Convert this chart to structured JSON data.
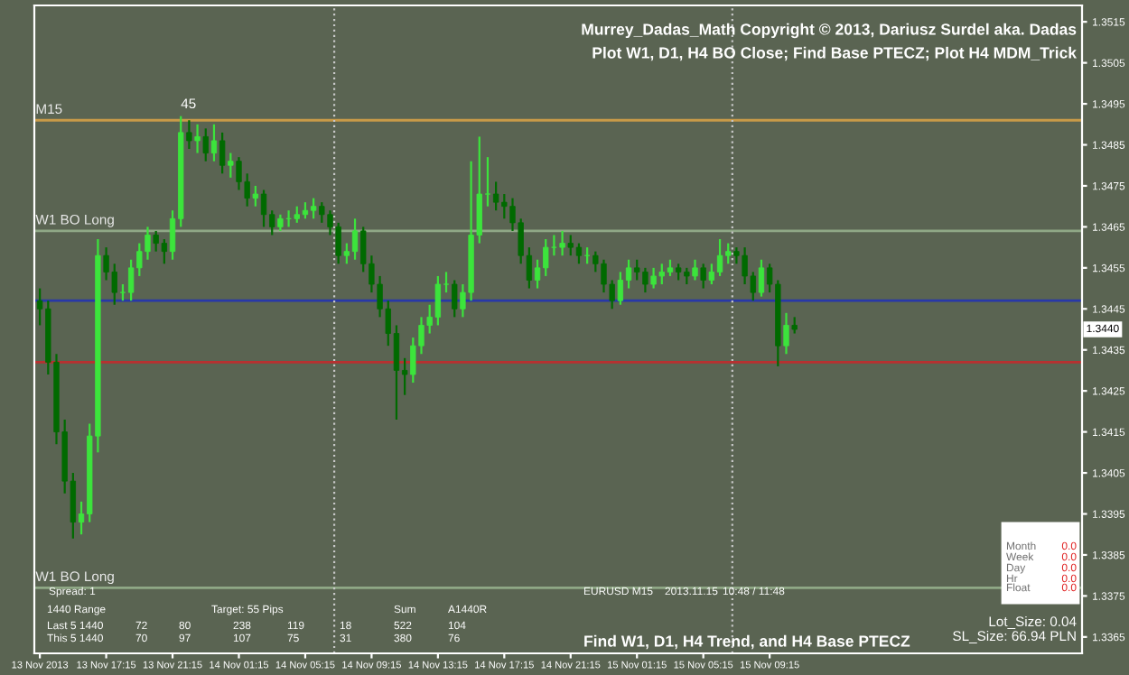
{
  "chart_data": {
    "type": "candlestick",
    "title": "Murrey_Dadas_Math Copyright © 2013, Dariusz Surdel aka. Dadas",
    "subtitle": "Plot W1, D1, H4 BO Close; Find Base PTECZ; Plot H4 MDM_Trick",
    "x": [
      "2013-11-13T13:15",
      "2013-11-13T13:45",
      "2013-11-13T14:15",
      "2013-11-13T14:45",
      "2013-11-13T15:15",
      "2013-11-13T15:45",
      "2013-11-13T16:15",
      "2013-11-13T16:45",
      "2013-11-13T17:15",
      "2013-11-13T17:45",
      "2013-11-13T18:15",
      "2013-11-13T18:45",
      "2013-11-13T19:15",
      "2013-11-13T19:45",
      "2013-11-13T20:15",
      "2013-11-13T20:45",
      "2013-11-13T21:15",
      "2013-11-13T21:45",
      "2013-11-13T22:15",
      "2013-11-13T22:45",
      "2013-11-13T23:15",
      "2013-11-13T23:45",
      "2013-11-14T00:15",
      "2013-11-14T00:45",
      "2013-11-14T01:15",
      "2013-11-14T01:45",
      "2013-11-14T02:15",
      "2013-11-14T02:45",
      "2013-11-14T03:15",
      "2013-11-14T03:45",
      "2013-11-14T04:15",
      "2013-11-14T04:45",
      "2013-11-14T05:15",
      "2013-11-14T05:45",
      "2013-11-14T06:15",
      "2013-11-14T06:45",
      "2013-11-14T07:15",
      "2013-11-14T07:45",
      "2013-11-14T08:15",
      "2013-11-14T08:45",
      "2013-11-14T09:15",
      "2013-11-14T09:45",
      "2013-11-14T10:15",
      "2013-11-14T10:45",
      "2013-11-14T11:15",
      "2013-11-14T11:45",
      "2013-11-14T12:15",
      "2013-11-14T12:45",
      "2013-11-14T13:15",
      "2013-11-14T13:45",
      "2013-11-14T14:15",
      "2013-11-14T14:45",
      "2013-11-14T15:15",
      "2013-11-14T15:45",
      "2013-11-14T16:15",
      "2013-11-14T16:45",
      "2013-11-14T17:15",
      "2013-11-14T17:45",
      "2013-11-14T18:15",
      "2013-11-14T18:45",
      "2013-11-14T19:15",
      "2013-11-14T19:45",
      "2013-11-14T20:15",
      "2013-11-14T20:45",
      "2013-11-14T21:15",
      "2013-11-14T21:45",
      "2013-11-14T22:15",
      "2013-11-14T22:45",
      "2013-11-14T23:15",
      "2013-11-14T23:45",
      "2013-11-15T00:15",
      "2013-11-15T00:45",
      "2013-11-15T01:15",
      "2013-11-15T01:45",
      "2013-11-15T02:15",
      "2013-11-15T02:45",
      "2013-11-15T03:15",
      "2013-11-15T03:45",
      "2013-11-15T04:15",
      "2013-11-15T04:45",
      "2013-11-15T05:15",
      "2013-11-15T05:45",
      "2013-11-15T06:15",
      "2013-11-15T06:45",
      "2013-11-15T07:15",
      "2013-11-15T07:45",
      "2013-11-15T08:15",
      "2013-11-15T08:45",
      "2013-11-15T09:15",
      "2013-11-15T09:45",
      "2013-11-15T10:15",
      "2013-11-15T10:45"
    ],
    "ohlc": [
      [
        1.3447,
        1.345,
        1.3441,
        1.3445
      ],
      [
        1.3445,
        1.3447,
        1.3429,
        1.3432
      ],
      [
        1.3432,
        1.3434,
        1.3412,
        1.3415
      ],
      [
        1.3415,
        1.3418,
        1.34,
        1.3403
      ],
      [
        1.3403,
        1.3405,
        1.3389,
        1.3393
      ],
      [
        1.3393,
        1.3398,
        1.339,
        1.3395
      ],
      [
        1.3395,
        1.3417,
        1.3393,
        1.3414
      ],
      [
        1.3414,
        1.3462,
        1.341,
        1.3458
      ],
      [
        1.3458,
        1.346,
        1.3452,
        1.3454
      ],
      [
        1.3454,
        1.3456,
        1.3446,
        1.3449
      ],
      [
        1.3449,
        1.3451,
        1.3447,
        1.3449
      ],
      [
        1.3449,
        1.3457,
        1.3447,
        1.3455
      ],
      [
        1.3455,
        1.3461,
        1.3453,
        1.3459
      ],
      [
        1.3459,
        1.3465,
        1.3457,
        1.3463
      ],
      [
        1.3463,
        1.3464,
        1.3459,
        1.3461
      ],
      [
        1.3461,
        1.3462,
        1.3456,
        1.3459
      ],
      [
        1.3459,
        1.3469,
        1.3457,
        1.3467
      ],
      [
        1.3467,
        1.3492,
        1.3465,
        1.3488
      ],
      [
        1.3488,
        1.3491,
        1.3484,
        1.3486
      ],
      [
        1.3486,
        1.349,
        1.3483,
        1.3487
      ],
      [
        1.3487,
        1.3489,
        1.3481,
        1.3483
      ],
      [
        1.3483,
        1.349,
        1.3481,
        1.3486
      ],
      [
        1.3486,
        1.3488,
        1.3478,
        1.348
      ],
      [
        1.348,
        1.3483,
        1.3477,
        1.3481
      ],
      [
        1.3481,
        1.3482,
        1.3474,
        1.3476
      ],
      [
        1.3476,
        1.3478,
        1.347,
        1.3472
      ],
      [
        1.3472,
        1.3475,
        1.347,
        1.3473
      ],
      [
        1.3473,
        1.3474,
        1.3465,
        1.3468
      ],
      [
        1.3468,
        1.3469,
        1.3463,
        1.3465
      ],
      [
        1.3465,
        1.3468,
        1.3464,
        1.3467
      ],
      [
        1.3467,
        1.3469,
        1.3465,
        1.3467
      ],
      [
        1.3467,
        1.347,
        1.3466,
        1.3468
      ],
      [
        1.3468,
        1.3471,
        1.3467,
        1.3469
      ],
      [
        1.3469,
        1.3472,
        1.3467,
        1.347
      ],
      [
        1.347,
        1.3471,
        1.3466,
        1.3468
      ],
      [
        1.3468,
        1.3469,
        1.3463,
        1.3465
      ],
      [
        1.3465,
        1.3466,
        1.3456,
        1.3458
      ],
      [
        1.3458,
        1.3461,
        1.3456,
        1.3459
      ],
      [
        1.3459,
        1.3467,
        1.3457,
        1.3464
      ],
      [
        1.3464,
        1.3465,
        1.3454,
        1.3456
      ],
      [
        1.3456,
        1.3458,
        1.3449,
        1.3451
      ],
      [
        1.3451,
        1.3453,
        1.3443,
        1.3445
      ],
      [
        1.3445,
        1.3447,
        1.3436,
        1.3439
      ],
      [
        1.3439,
        1.3441,
        1.3418,
        1.343
      ],
      [
        1.343,
        1.3433,
        1.3424,
        1.3429
      ],
      [
        1.3429,
        1.3438,
        1.3427,
        1.3436
      ],
      [
        1.3436,
        1.3443,
        1.3434,
        1.3441
      ],
      [
        1.3441,
        1.3446,
        1.3439,
        1.3443
      ],
      [
        1.3443,
        1.3453,
        1.3441,
        1.3451
      ],
      [
        1.3451,
        1.3454,
        1.3449,
        1.3451
      ],
      [
        1.3451,
        1.3452,
        1.3443,
        1.3445
      ],
      [
        1.3445,
        1.3451,
        1.3443,
        1.3449
      ],
      [
        1.3449,
        1.3481,
        1.3447,
        1.3463
      ],
      [
        1.3463,
        1.3487,
        1.3461,
        1.3473
      ],
      [
        1.3473,
        1.3482,
        1.347,
        1.3473
      ],
      [
        1.3473,
        1.3476,
        1.3469,
        1.3471
      ],
      [
        1.3471,
        1.3473,
        1.3467,
        1.347
      ],
      [
        1.347,
        1.3472,
        1.3464,
        1.3466
      ],
      [
        1.3466,
        1.3467,
        1.3456,
        1.3458
      ],
      [
        1.3458,
        1.346,
        1.345,
        1.3452
      ],
      [
        1.3452,
        1.3457,
        1.345,
        1.3455
      ],
      [
        1.3455,
        1.3462,
        1.3453,
        1.346
      ],
      [
        1.346,
        1.3463,
        1.3458,
        1.346
      ],
      [
        1.346,
        1.3464,
        1.3458,
        1.3461
      ],
      [
        1.3461,
        1.3463,
        1.3458,
        1.346
      ],
      [
        1.346,
        1.3461,
        1.3456,
        1.3458
      ],
      [
        1.3458,
        1.346,
        1.3456,
        1.3458
      ],
      [
        1.3458,
        1.3459,
        1.3454,
        1.3456
      ],
      [
        1.3456,
        1.3457,
        1.3449,
        1.3451
      ],
      [
        1.3451,
        1.3452,
        1.3445,
        1.3447
      ],
      [
        1.3447,
        1.3454,
        1.3446,
        1.3452
      ],
      [
        1.3452,
        1.3457,
        1.345,
        1.3455
      ],
      [
        1.3455,
        1.3457,
        1.3452,
        1.3454
      ],
      [
        1.3454,
        1.3455,
        1.3449,
        1.3451
      ],
      [
        1.3451,
        1.3455,
        1.345,
        1.3453
      ],
      [
        1.3453,
        1.3456,
        1.3451,
        1.3454
      ],
      [
        1.3454,
        1.3457,
        1.3453,
        1.3455
      ],
      [
        1.3455,
        1.3456,
        1.3452,
        1.3454
      ],
      [
        1.3454,
        1.3455,
        1.3451,
        1.3453
      ],
      [
        1.3453,
        1.3457,
        1.3452,
        1.3455
      ],
      [
        1.3455,
        1.3456,
        1.345,
        1.3452
      ],
      [
        1.3452,
        1.3456,
        1.3451,
        1.3454
      ],
      [
        1.3454,
        1.3462,
        1.3453,
        1.3458
      ],
      [
        1.3458,
        1.3461,
        1.3456,
        1.3459
      ],
      [
        1.3459,
        1.346,
        1.3456,
        1.3458
      ],
      [
        1.3458,
        1.346,
        1.3451,
        1.3453
      ],
      [
        1.3453,
        1.3454,
        1.3447,
        1.3449
      ],
      [
        1.3449,
        1.3457,
        1.3448,
        1.3455
      ],
      [
        1.3455,
        1.3456,
        1.3449,
        1.3451
      ],
      [
        1.3451,
        1.3452,
        1.3431,
        1.3436
      ],
      [
        1.3436,
        1.3444,
        1.3434,
        1.3441
      ],
      [
        1.3441,
        1.3443,
        1.3439,
        1.344
      ]
    ],
    "xlim": [
      "2013-11-13T12:55",
      "2013-11-16T04:05"
    ],
    "xticks": [
      {
        "value": "2013-11-13T13:15",
        "label": "13 Nov 2013"
      },
      {
        "value": "2013-11-13T17:15",
        "label": "13 Nov 17:15"
      },
      {
        "value": "2013-11-13T21:15",
        "label": "13 Nov 21:15"
      },
      {
        "value": "2013-11-14T01:15",
        "label": "14 Nov 01:15"
      },
      {
        "value": "2013-11-14T05:15",
        "label": "14 Nov 05:15"
      },
      {
        "value": "2013-11-14T09:15",
        "label": "14 Nov 09:15"
      },
      {
        "value": "2013-11-14T13:15",
        "label": "14 Nov 13:15"
      },
      {
        "value": "2013-11-14T17:15",
        "label": "14 Nov 17:15"
      },
      {
        "value": "2013-11-14T21:15",
        "label": "14 Nov 21:15"
      },
      {
        "value": "2013-11-15T01:15",
        "label": "15 Nov 01:15"
      },
      {
        "value": "2013-11-15T05:15",
        "label": "15 Nov 05:15"
      },
      {
        "value": "2013-11-15T09:15",
        "label": "15 Nov 09:15"
      }
    ],
    "ylim": [
      1.3361,
      1.3519
    ],
    "yticks": [
      1.3515,
      1.3505,
      1.3495,
      1.3485,
      1.3475,
      1.3465,
      1.3455,
      1.3445,
      1.3435,
      1.3425,
      1.3415,
      1.3405,
      1.3395,
      1.3385,
      1.3375,
      1.3365
    ],
    "grid": false,
    "ref_lines": [
      {
        "axis": "y",
        "value": 1.3491,
        "label": "M15",
        "color": "#c89a48"
      },
      {
        "axis": "y",
        "value": 1.3464,
        "label": "W1 BO Long",
        "color": "#8fa886"
      },
      {
        "axis": "y",
        "value": 1.3447,
        "color": "#2838a8"
      },
      {
        "axis": "y",
        "value": 1.3432,
        "color": "#b83030"
      },
      {
        "axis": "y",
        "value": 1.3377,
        "label": "W1 BO Long",
        "color": "#8fa886"
      },
      {
        "axis": "x",
        "value": "2013-11-14T07:00",
        "color": "#c8c8c8",
        "line_style": "dotted"
      },
      {
        "axis": "x",
        "value": "2013-11-15T07:00",
        "color": "#c8c8c8",
        "line_style": "dotted"
      }
    ],
    "annotations": [
      {
        "text": "45",
        "x": "2013-11-13T21:45",
        "y": 1.3492
      },
      {
        "text": "1.3440",
        "y": 1.344
      },
      "Spread: 1",
      "1440 Range",
      "Target: 55 Pips",
      "Sum",
      "A1440R",
      "Last 5 1440",
      "72",
      "80",
      "238",
      "119",
      "18",
      "522",
      "104",
      "This 5 1440",
      "70",
      "97",
      "107",
      "75",
      "31",
      "380",
      "76",
      "EURUSD M15",
      "2013.11.15",
      "10:48 / 11:48",
      "Find W1, D1, H4 Trend, and H4 Base PTECZ",
      "Lot_Size: 0.04",
      "SL_Size: 66.94 PLN",
      "Month",
      "0.0",
      "Week",
      "0.0",
      "Day",
      "0.0",
      "Hr",
      "0.0",
      "Float",
      "0.0"
    ]
  }
}
